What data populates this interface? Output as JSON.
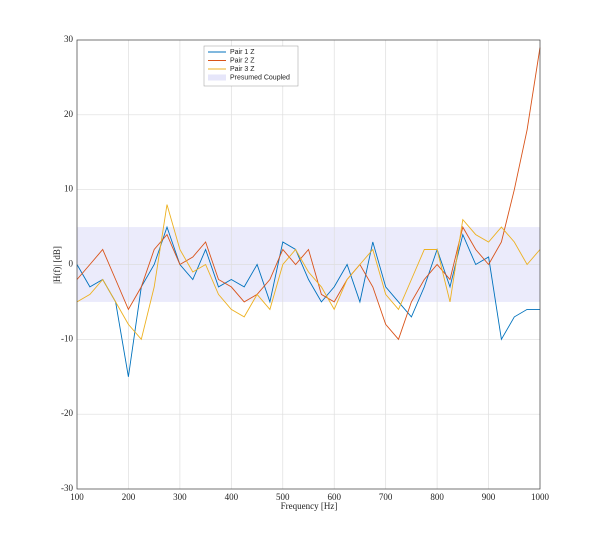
{
  "chart_data": {
    "type": "line",
    "xlabel": "Frequency [Hz]",
    "ylabel": "|H(f)| [dB]",
    "x": [
      100,
      125,
      150,
      175,
      200,
      225,
      250,
      275,
      300,
      325,
      350,
      375,
      400,
      425,
      450,
      475,
      500,
      525,
      550,
      575,
      600,
      625,
      650,
      675,
      700,
      725,
      750,
      775,
      800,
      825,
      850,
      875,
      900,
      925,
      950,
      975,
      1000
    ],
    "series": [
      {
        "name": "Pair 1 Z",
        "color": "#0072bd",
        "values": [
          0,
          -3,
          -2,
          -5,
          -15,
          -3,
          0,
          5,
          0,
          -2,
          2,
          -3,
          -2,
          -3,
          0,
          -5,
          3,
          2,
          -2,
          -5,
          -3,
          0,
          -5,
          3,
          -3,
          -5,
          -7,
          -3,
          2,
          -3,
          4,
          0,
          1,
          -10,
          -7,
          -6,
          -6
        ]
      },
      {
        "name": "Pair 2 Z",
        "color": "#d95319",
        "values": [
          -2,
          0,
          2,
          -2,
          -6,
          -3,
          2,
          4,
          0,
          1,
          3,
          -2,
          -3,
          -5,
          -4,
          -2,
          2,
          0,
          2,
          -4,
          -5,
          -2,
          0,
          -3,
          -8,
          -10,
          -5,
          -2,
          0,
          -2,
          5,
          2,
          0,
          3,
          10,
          18,
          29
        ]
      },
      {
        "name": "Pair 3 Z",
        "color": "#edb120",
        "values": [
          -5,
          -4,
          -2,
          -5,
          -8,
          -10,
          -3,
          8,
          2,
          -1,
          0,
          -4,
          -6,
          -7,
          -4,
          -6,
          0,
          2,
          -1,
          -3,
          -6,
          -2,
          0,
          2,
          -4,
          -6,
          -2,
          2,
          2,
          -5,
          6,
          4,
          3,
          5,
          3,
          0,
          2
        ]
      }
    ],
    "band": {
      "name": "Presumed Coupled",
      "color": "#e6e6fa",
      "range": [
        -5,
        5
      ]
    },
    "xlim": [
      100,
      1000
    ],
    "xticks": [
      100,
      200,
      300,
      400,
      500,
      600,
      700,
      800,
      900,
      1000
    ],
    "ylim": [
      -30,
      30
    ],
    "yticks": [
      -30,
      -20,
      -10,
      0,
      10,
      20,
      30
    ],
    "grid": true
  }
}
